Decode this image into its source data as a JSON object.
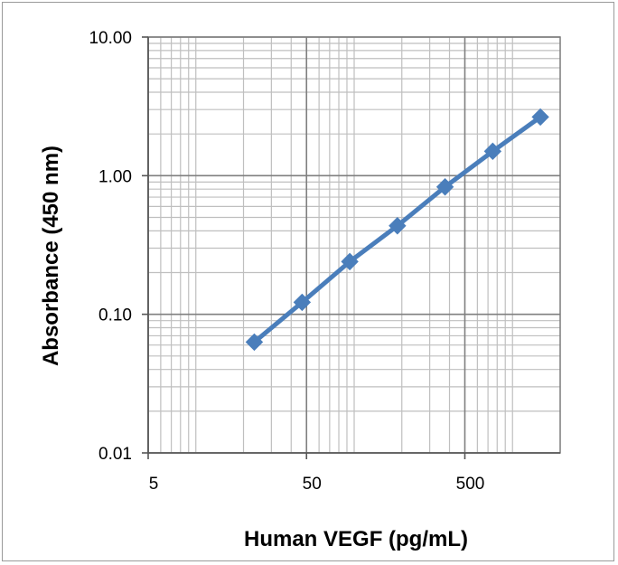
{
  "chart_data": {
    "type": "line",
    "title": "",
    "xlabel": "Human VEGF (pg/mL)",
    "ylabel": "Absorbance (450 nm)",
    "x_scale": "log",
    "y_scale": "log",
    "xlim": [
      5,
      2000
    ],
    "ylim": [
      0.01,
      10
    ],
    "x_ticks": [
      {
        "value": 5,
        "label": "5"
      },
      {
        "value": 50,
        "label": "50"
      },
      {
        "value": 500,
        "label": "500"
      }
    ],
    "y_ticks": [
      {
        "value": 10,
        "label": "10.00"
      },
      {
        "value": 1,
        "label": "1.00"
      },
      {
        "value": 0.1,
        "label": "0.10"
      },
      {
        "value": 0.01,
        "label": "0.01"
      }
    ],
    "grid": true,
    "legend": "none",
    "series": [
      {
        "color": "#4a7ebb",
        "marker": "diamond",
        "points": [
          {
            "x": 23.4,
            "y": 0.063
          },
          {
            "x": 46.9,
            "y": 0.122
          },
          {
            "x": 93.8,
            "y": 0.24
          },
          {
            "x": 187.5,
            "y": 0.435
          },
          {
            "x": 375,
            "y": 0.83
          },
          {
            "x": 750,
            "y": 1.5
          },
          {
            "x": 1500,
            "y": 2.65
          }
        ]
      }
    ]
  }
}
